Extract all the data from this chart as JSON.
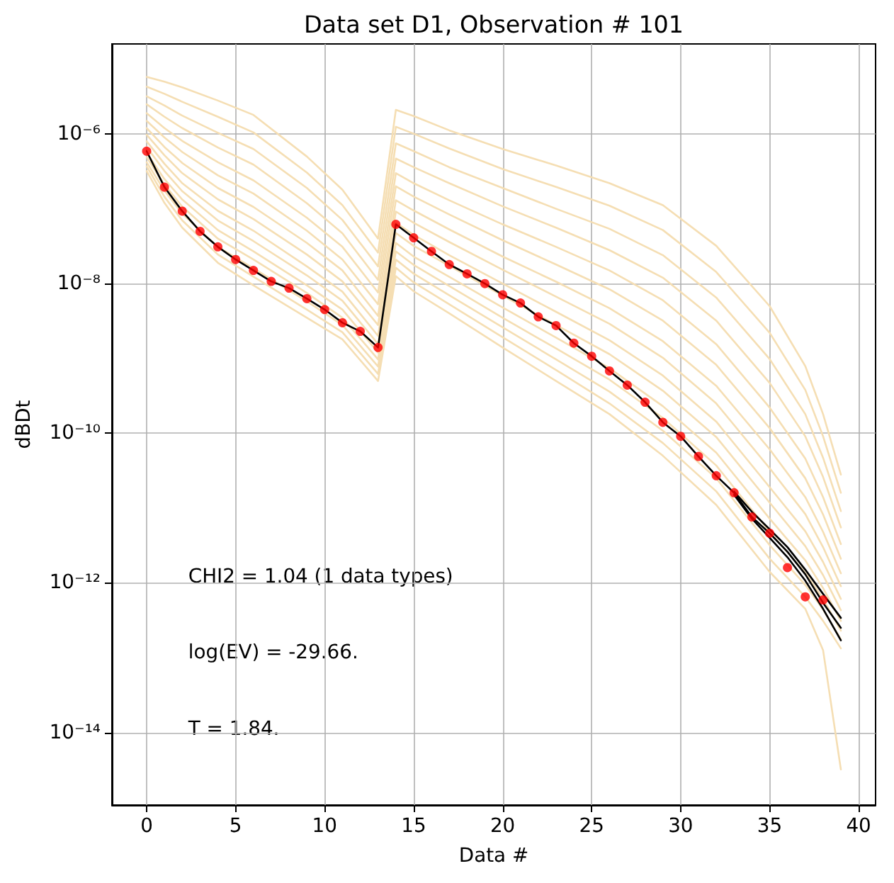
{
  "chart_data": {
    "type": "line",
    "title": "Data set D1, Observation # 101",
    "xlabel": "Data #",
    "ylabel": "dBDt",
    "xlim": [
      -1.95,
      40.95
    ],
    "xticks": [
      0,
      5,
      10,
      15,
      20,
      25,
      30,
      35,
      40
    ],
    "ylim": [
      1.07e-15,
      1.6e-05
    ],
    "yticks": [
      {
        "value": 1e-06,
        "label": "10⁻⁶"
      },
      {
        "value": 1e-08,
        "label": "10⁻⁸"
      },
      {
        "value": 1e-10,
        "label": "10⁻¹⁰"
      },
      {
        "value": 1e-12,
        "label": "10⁻¹²"
      },
      {
        "value": 1e-14,
        "label": "10⁻¹⁴"
      }
    ],
    "log": "y",
    "grid": true,
    "x": [
      0,
      1,
      2,
      4,
      6,
      9,
      11,
      13,
      14,
      15,
      17,
      20,
      23,
      26,
      29,
      32,
      35,
      37,
      38,
      39
    ],
    "series": [
      {
        "color": "#f5deb3",
        "values": [
          3.2e-07,
          1.2e-07,
          5.6e-08,
          1.9e-08,
          9.5e-09,
          3.5e-09,
          1.8e-09,
          5e-10,
          1.26e-08,
          7.9e-09,
          4e-09,
          1.4e-09,
          5e-10,
          1.8e-10,
          5e-11,
          1.1e-11,
          1.4e-12,
          4.5e-13,
          1.26e-13,
          3.2e-15
        ]
      },
      {
        "color": "#f5deb3",
        "values": [
          3.7e-07,
          1.45e-07,
          7e-08,
          2.45e-08,
          1.24e-08,
          4.5e-09,
          2.24e-09,
          6.2e-10,
          1.63e-08,
          1.04e-08,
          5.3e-09,
          1.92e-09,
          7e-10,
          2.5e-10,
          7.4e-11,
          1.67e-11,
          2.1e-12,
          6.5e-13,
          3.1e-13,
          1.33e-13
        ]
      },
      {
        "color": "#f5deb3",
        "values": [
          4.2e-07,
          1.75e-07,
          8.6e-08,
          3.1e-08,
          1.6e-08,
          5.8e-09,
          2.8e-09,
          7.8e-10,
          2.1e-08,
          1.36e-08,
          7e-09,
          2.6e-09,
          9.7e-10,
          3.6e-10,
          1.08e-10,
          2.5e-11,
          3.2e-12,
          9.4e-13,
          4.4e-13,
          1.76e-13
        ]
      },
      {
        "color": "#f5deb3",
        "values": [
          4.9e-07,
          2.1e-07,
          1.07e-07,
          4e-08,
          2.1e-08,
          7.5e-09,
          3.5e-09,
          9.7e-10,
          2.7e-08,
          1.78e-08,
          9.3e-09,
          3.5e-09,
          1.36e-09,
          5.2e-10,
          1.6e-10,
          3.7e-11,
          4.8e-12,
          1.37e-12,
          6.1e-13,
          2.3e-13
        ]
      },
      {
        "color": "#f5deb3",
        "values": [
          5.6e-07,
          2.5e-07,
          1.33e-07,
          5.2e-08,
          2.7e-08,
          9.5e-09,
          4.5e-09,
          1.2e-09,
          3.5e-08,
          2.3e-08,
          1.23e-08,
          4.8e-09,
          1.9e-09,
          7.4e-10,
          2.3e-10,
          5.5e-11,
          7.2e-12,
          2e-12,
          8.5e-13,
          3.1e-13
        ]
      },
      {
        "color": "#f5deb3",
        "values": [
          6.7e-07,
          3.2e-07,
          1.72e-07,
          7e-08,
          3.7e-08,
          1.29e-08,
          5.9e-09,
          1.56e-09,
          4.75e-08,
          3.2e-08,
          1.73e-08,
          6.9e-09,
          2.8e-09,
          1.14e-09,
          3.7e-10,
          8.9e-11,
          1.18e-11,
          3.1e-12,
          1.27e-12,
          4.3e-13
        ]
      },
      {
        "color": "#f5deb3",
        "values": [
          8e-07,
          4e-07,
          2.2e-07,
          9.4e-08,
          5.1e-08,
          1.7e-08,
          7.8e-09,
          2e-09,
          6.5e-08,
          4.5e-08,
          2.4e-08,
          1e-08,
          4.2e-09,
          1.75e-09,
          5.9e-10,
          1.43e-10,
          1.9e-11,
          4.9e-12,
          1.9e-12,
          6.1e-13
        ]
      },
      {
        "color": "#f5deb3",
        "values": [
          9.8e-07,
          5.2e-07,
          3e-07,
          1.34e-07,
          7.3e-08,
          2.45e-08,
          1.07e-08,
          2.8e-09,
          9.2e-08,
          6.5e-08,
          3.6e-08,
          1.53e-08,
          6.7e-09,
          2.9e-09,
          1.02e-09,
          2.5e-10,
          3.4e-11,
          8.3e-12,
          3e-12,
          9e-13
        ]
      },
      {
        "color": "#f5deb3",
        "values": [
          1.2e-06,
          6.7e-07,
          4.1e-07,
          1.9e-07,
          1.06e-07,
          3.5e-08,
          1.5e-08,
          3.7e-09,
          1.3e-07,
          9.5e-08,
          5.3e-08,
          2.3e-08,
          1.06e-08,
          4.7e-09,
          1.7e-09,
          4.3e-10,
          6.1e-11,
          1.4e-11,
          4.8e-12,
          1.34e-12
        ]
      },
      {
        "color": "#f5deb3",
        "values": [
          1.5e-06,
          9e-07,
          5.75e-07,
          2.8e-07,
          1.6e-07,
          5.1e-08,
          2.1e-08,
          5.3e-09,
          2e-07,
          1.46e-07,
          8.4e-08,
          3.8e-08,
          1.8e-08,
          8.4e-09,
          3.2e-09,
          8.2e-10,
          1.17e-10,
          2.5e-11,
          8.2e-12,
          2.1e-12
        ]
      },
      {
        "color": "#f5deb3",
        "values": [
          1.9e-06,
          1.2e-06,
          8.1e-07,
          4.2e-07,
          2.4e-07,
          7.6e-08,
          3.1e-08,
          7.6e-09,
          3e-07,
          2.2e-07,
          1.3e-07,
          6.2e-08,
          3.1e-08,
          1.5e-08,
          6e-09,
          1.55e-09,
          2.2e-10,
          4.6e-11,
          1.4e-11,
          3.3e-12
        ]
      },
      {
        "color": "#f5deb3",
        "values": [
          2.5e-06,
          1.7e-06,
          1.2e-06,
          6.6e-07,
          3.9e-07,
          1.19e-07,
          4.7e-08,
          1.12e-08,
          4.7e-07,
          3.6e-07,
          2.2e-07,
          1.08e-07,
          5.6e-08,
          2.8e-08,
          1.2e-08,
          3.2e-09,
          4.7e-10,
          9.1e-11,
          2.6e-11,
          5.5e-12
        ]
      },
      {
        "color": "#f5deb3",
        "values": [
          3.2e-06,
          2.4e-06,
          1.76e-06,
          1.04e-06,
          6.3e-07,
          1.9e-07,
          7.1e-08,
          1.7e-08,
          7.5e-07,
          5.9e-07,
          3.6e-07,
          1.9e-07,
          1e-07,
          5.4e-08,
          2.4e-08,
          6.5e-09,
          9.8e-10,
          1.8e-10,
          4.7e-11,
          9.1e-12
        ]
      },
      {
        "color": "#f5deb3",
        "values": [
          4.3e-06,
          3.45e-06,
          2.7e-06,
          1.7e-06,
          1.05e-06,
          3.05e-07,
          1.12e-07,
          2.6e-08,
          1.25e-06,
          1.01e-06,
          6.4e-07,
          3.4e-07,
          1.96e-07,
          1.1e-07,
          5.2e-08,
          1.43e-08,
          2.2e-09,
          3.8e-10,
          9.1e-11,
          1.6e-11
        ]
      },
      {
        "color": "#f5deb3",
        "values": [
          5.8e-06,
          5e-06,
          4.2e-06,
          2.8e-06,
          1.8e-06,
          5e-07,
          1.8e-07,
          4e-08,
          2.1e-06,
          1.74e-06,
          1.12e-06,
          6.3e-07,
          3.8e-07,
          2.2e-07,
          1.12e-07,
          3.2e-08,
          5e-09,
          7.9e-10,
          1.8e-10,
          2.8e-11
        ]
      },
      {
        "color": "#000000",
        "x": [
          0,
          1,
          2,
          3,
          4,
          5,
          6,
          7,
          8,
          9,
          10,
          11,
          12,
          13,
          14,
          15,
          16,
          17,
          18,
          19,
          20,
          21,
          22,
          23,
          24,
          25,
          26,
          27,
          28,
          29,
          30,
          31,
          32,
          33,
          34,
          35,
          36,
          37,
          38,
          39
        ],
        "values": [
          5.9e-07,
          1.95e-07,
          9.3e-08,
          5e-08,
          3.1e-08,
          2.1e-08,
          1.5e-08,
          1.07e-08,
          8.7e-09,
          6.3e-09,
          4.5e-09,
          3e-09,
          2.3e-09,
          1.4e-09,
          6.2e-08,
          4.1e-08,
          2.7e-08,
          1.8e-08,
          1.35e-08,
          1e-08,
          7.1e-09,
          5.5e-09,
          3.6e-09,
          2.75e-09,
          1.6e-09,
          1.07e-09,
          6.8e-10,
          4.4e-10,
          2.6e-10,
          1.4e-10,
          9.1e-11,
          4.9e-11,
          2.7e-11,
          1.6e-11,
          7.6e-12,
          4.6e-12,
          2.6e-12,
          1.3e-12,
          5.4e-13,
          2.5e-13
        ]
      },
      {
        "color": "#000000",
        "x": [
          33,
          34,
          35,
          36,
          37,
          38,
          39
        ],
        "values": [
          1.66e-11,
          8.9e-12,
          5.2e-12,
          3e-12,
          1.5e-12,
          7.1e-13,
          3.4e-13
        ]
      },
      {
        "color": "#000000",
        "x": [
          33,
          34,
          35,
          36,
          37,
          38,
          39
        ],
        "values": [
          1.5e-11,
          7.2e-12,
          4e-12,
          2.2e-12,
          1.07e-12,
          4.5e-13,
          1.7e-13
        ]
      },
      {
        "type": "scatter",
        "color": "#ff0000",
        "marker": "circle",
        "x": [
          0,
          1,
          2,
          3,
          4,
          5,
          6,
          7,
          8,
          9,
          10,
          11,
          12,
          13,
          14,
          15,
          16,
          17,
          18,
          19,
          20,
          21,
          22,
          23,
          24,
          25,
          26,
          27,
          28,
          29,
          30,
          31,
          32,
          33,
          34,
          35,
          36,
          37,
          38
        ],
        "values": [
          5.9e-07,
          1.95e-07,
          9.3e-08,
          5e-08,
          3.1e-08,
          2.1e-08,
          1.5e-08,
          1.07e-08,
          8.7e-09,
          6.3e-09,
          4.5e-09,
          3e-09,
          2.3e-09,
          1.4e-09,
          6.2e-08,
          4.1e-08,
          2.7e-08,
          1.8e-08,
          1.35e-08,
          1e-08,
          7.1e-09,
          5.5e-09,
          3.6e-09,
          2.75e-09,
          1.6e-09,
          1.07e-09,
          6.8e-10,
          4.4e-10,
          2.6e-10,
          1.4e-10,
          9.1e-11,
          4.9e-11,
          2.7e-11,
          1.6e-11,
          7.6e-12,
          4.6e-12,
          1.6e-12,
          6.5e-13,
          5.9e-13
        ]
      }
    ],
    "annotations": [
      "CHI2 = 1.04 (1 data types)",
      "log(EV) = -29.66.",
      "T = 1.84."
    ]
  }
}
